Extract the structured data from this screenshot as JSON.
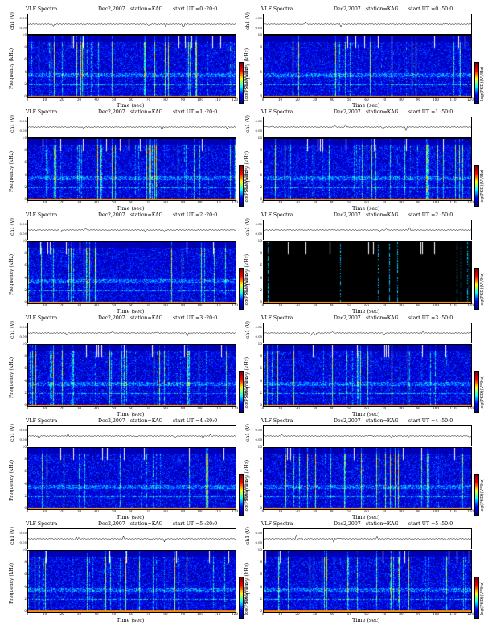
{
  "panels": [
    {
      "title": "VLF Spectra",
      "date": "Dec2,2007",
      "station": "station=KAG",
      "start": "start UT =0 :20:0",
      "dark": false
    },
    {
      "title": "VLF Spectra",
      "date": "Dec2,2007",
      "station": "station=KAG",
      "start": "start UT =0 :50:0",
      "dark": false
    },
    {
      "title": "VLF Spectra",
      "date": "Dec2,2007",
      "station": "station=KAG",
      "start": "start UT =1 :20:0",
      "dark": false
    },
    {
      "title": "VLF Spectra",
      "date": "Dec2,2007",
      "station": "station=KAG",
      "start": "start UT =1 :50:0",
      "dark": false
    },
    {
      "title": "VLF Spectra",
      "date": "Dec2,2007",
      "station": "station=KAG",
      "start": "start UT =2 :20:0",
      "dark": false
    },
    {
      "title": "VLF Spectra",
      "date": "Dec2,2007",
      "station": "station=KAG",
      "start": "start UT =2 :50:0",
      "dark": true
    },
    {
      "title": "VLF Spectra",
      "date": "Dec2,2007",
      "station": "station=KAG",
      "start": "start UT =3 :20:0",
      "dark": false
    },
    {
      "title": "VLF Spectra",
      "date": "Dec2,2007",
      "station": "station=KAG",
      "start": "start UT =3 :50:0",
      "dark": false
    },
    {
      "title": "VLF Spectra",
      "date": "Dec2,2007",
      "station": "station=KAG",
      "start": "start UT =4 :20:0",
      "dark": false
    },
    {
      "title": "VLF Spectra",
      "date": "Dec2,2007",
      "station": "station=KAG",
      "start": "start UT =4 :50:0",
      "dark": false
    },
    {
      "title": "VLF Spectra",
      "date": "Dec2,2007",
      "station": "station=KAG",
      "start": "start UT =5 :20:0",
      "dark": false
    },
    {
      "title": "VLF Spectra",
      "date": "Dec2,2007",
      "station": "station=KAG",
      "start": "start UT =5 :50:0",
      "dark": false
    }
  ],
  "labels": {
    "wave_ylabel": "ch1 (V)",
    "freq_ylabel": "Frequency (kHz)",
    "xlabel": "Time (sec)",
    "cbar_label": "log(PSD)(V²/Hz)"
  },
  "chart_data": {
    "type": "heatmap",
    "x_range": [
      0,
      120
    ],
    "y_range_khz": [
      0,
      10
    ],
    "x_ticks": [
      "0",
      "10",
      "20",
      "30",
      "40",
      "50",
      "60",
      "70",
      "80",
      "90",
      "100",
      "110",
      "120"
    ],
    "y_ticks": [
      "0",
      "2",
      "4",
      "6",
      "8",
      "10"
    ],
    "wave_ticks": [
      "0.00",
      "0.50"
    ],
    "colormap": [
      "#00008f",
      "#0000ff",
      "#00ffff",
      "#ffff00",
      "#ff0000",
      "#800000"
    ]
  }
}
